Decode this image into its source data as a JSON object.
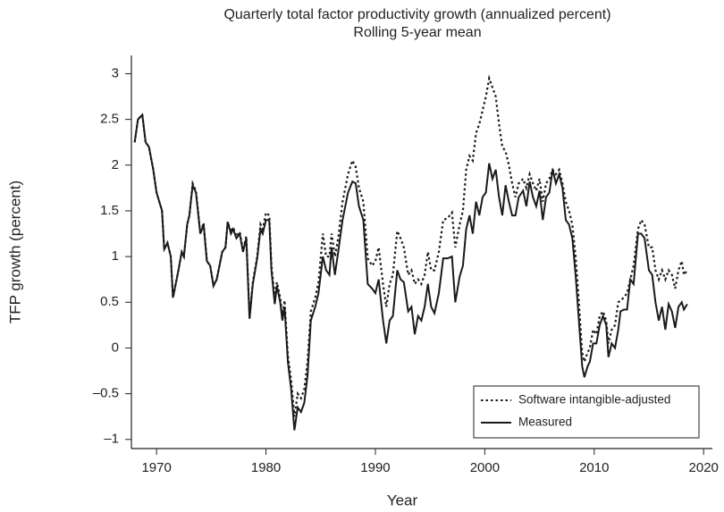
{
  "chart_data": {
    "type": "line",
    "title": "Quarterly total factor productivity growth (annualized percent)",
    "subtitle": "Rolling 5-year mean",
    "x_label": "Year",
    "y_label": "TFP growth (percent)",
    "xlim": [
      1967.7,
      2020.8
    ],
    "ylim": [
      -1.1,
      3.2
    ],
    "xticks": [
      1970,
      1980,
      1990,
      2000,
      2010,
      2020
    ],
    "yticks": [
      {
        "value": -1,
        "label": "–1"
      },
      {
        "value": -0.5,
        "label": "–0.5"
      },
      0,
      0.5,
      1,
      1.5,
      2,
      2.5,
      3
    ],
    "legend": "lower right",
    "x": [
      1968.0,
      1968.3,
      1968.7,
      1969.0,
      1969.3,
      1969.7,
      1970.0,
      1970.5,
      1970.7,
      1971.0,
      1971.3,
      1971.5,
      1972.0,
      1972.3,
      1972.5,
      1972.8,
      1973.0,
      1973.3,
      1973.6,
      1974.0,
      1974.3,
      1974.6,
      1974.9,
      1975.2,
      1975.5,
      1976.0,
      1976.3,
      1976.5,
      1976.8,
      1977.0,
      1977.3,
      1977.6,
      1977.9,
      1978.2,
      1978.5,
      1978.8,
      1979.2,
      1979.5,
      1979.7,
      1980.0,
      1980.3,
      1980.5,
      1980.8,
      1981.0,
      1981.3,
      1981.5,
      1981.7,
      1982.0,
      1982.3,
      1982.6,
      1982.9,
      1983.2,
      1983.5,
      1983.8,
      1984.1,
      1984.5,
      1984.8,
      1985.2,
      1985.5,
      1985.8,
      1986.0,
      1986.3,
      1986.6,
      1987.0,
      1987.5,
      1987.9,
      1988.2,
      1988.5,
      1988.9,
      1989.3,
      1989.7,
      1990.0,
      1990.3,
      1990.7,
      1991.0,
      1991.3,
      1991.6,
      1992.0,
      1992.3,
      1992.6,
      1993.0,
      1993.3,
      1993.6,
      1993.9,
      1994.2,
      1994.5,
      1994.8,
      1995.1,
      1995.4,
      1995.8,
      1996.2,
      1996.6,
      1997.0,
      1997.3,
      1997.7,
      1998.0,
      1998.3,
      1998.6,
      1998.9,
      1999.2,
      1999.5,
      1999.8,
      2000.1,
      2000.4,
      2000.7,
      2001.0,
      2001.3,
      2001.6,
      2001.9,
      2002.2,
      2002.5,
      2002.8,
      2003.1,
      2003.5,
      2003.8,
      2004.1,
      2004.4,
      2004.7,
      2005.0,
      2005.3,
      2005.6,
      2005.9,
      2006.2,
      2006.5,
      2006.8,
      2007.1,
      2007.4,
      2007.7,
      2008.0,
      2008.3,
      2008.6,
      2008.9,
      2009.1,
      2009.4,
      2009.6,
      2009.9,
      2010.2,
      2010.5,
      2010.8,
      2011.1,
      2011.3,
      2011.6,
      2011.9,
      2012.2,
      2012.4,
      2012.7,
      2013.0,
      2013.3,
      2013.6,
      2014.0,
      2014.3,
      2014.6,
      2015.0,
      2015.3,
      2015.6,
      2015.9,
      2016.2,
      2016.5,
      2016.8,
      2017.1,
      2017.4,
      2017.7,
      2018.0,
      2018.2,
      2018.5
    ],
    "series": [
      {
        "name": "Software intangible-adjusted",
        "color": "#1a1a1a",
        "line_style": "dotted",
        "values": [
          2.25,
          2.5,
          2.55,
          2.25,
          2.2,
          1.95,
          1.7,
          1.5,
          1.08,
          1.15,
          1.0,
          0.55,
          0.85,
          1.05,
          1.0,
          1.35,
          1.45,
          1.8,
          1.72,
          1.25,
          1.37,
          0.95,
          0.9,
          0.68,
          0.75,
          1.05,
          1.1,
          1.38,
          1.27,
          1.32,
          1.22,
          1.27,
          1.07,
          1.22,
          0.33,
          0.72,
          1.0,
          1.35,
          1.3,
          1.48,
          1.45,
          0.9,
          0.55,
          0.72,
          0.55,
          0.35,
          0.52,
          -0.08,
          -0.35,
          -0.75,
          -0.5,
          -0.55,
          -0.45,
          -0.15,
          0.4,
          0.55,
          0.72,
          1.25,
          1.0,
          1.0,
          1.25,
          1.0,
          1.2,
          1.6,
          1.9,
          2.05,
          1.98,
          1.75,
          1.6,
          0.98,
          0.9,
          0.95,
          1.1,
          0.7,
          0.45,
          0.7,
          0.8,
          1.28,
          1.2,
          1.1,
          0.8,
          0.85,
          0.7,
          0.75,
          0.7,
          0.8,
          1.05,
          0.85,
          0.85,
          1.05,
          1.4,
          1.42,
          1.48,
          1.1,
          1.35,
          1.5,
          1.95,
          2.1,
          2.05,
          2.35,
          2.45,
          2.6,
          2.75,
          2.95,
          2.85,
          2.75,
          2.45,
          2.2,
          2.15,
          2.0,
          1.8,
          1.65,
          1.8,
          1.85,
          1.75,
          1.9,
          1.8,
          1.72,
          1.85,
          1.6,
          1.8,
          1.85,
          1.95,
          1.9,
          1.95,
          1.8,
          1.6,
          1.5,
          1.35,
          1.0,
          0.5,
          -0.05,
          -0.15,
          -0.05,
          0.0,
          0.2,
          0.15,
          0.35,
          0.4,
          0.3,
          0.05,
          0.2,
          0.25,
          0.5,
          0.52,
          0.55,
          0.6,
          0.75,
          0.9,
          1.3,
          1.4,
          1.35,
          1.1,
          1.1,
          0.85,
          0.75,
          0.85,
          0.75,
          0.85,
          0.8,
          0.65,
          0.85,
          0.95,
          0.8,
          0.85
        ]
      },
      {
        "name": "Measured",
        "color": "#1a1a1a",
        "line_style": "solid",
        "values": [
          2.25,
          2.5,
          2.55,
          2.25,
          2.2,
          1.95,
          1.7,
          1.5,
          1.08,
          1.15,
          1.0,
          0.55,
          0.85,
          1.05,
          1.0,
          1.35,
          1.45,
          1.78,
          1.7,
          1.25,
          1.35,
          0.95,
          0.9,
          0.68,
          0.75,
          1.05,
          1.1,
          1.38,
          1.25,
          1.3,
          1.2,
          1.25,
          1.05,
          1.2,
          0.32,
          0.7,
          0.98,
          1.3,
          1.25,
          1.4,
          1.4,
          0.85,
          0.48,
          0.68,
          0.5,
          0.3,
          0.45,
          -0.15,
          -0.45,
          -0.9,
          -0.65,
          -0.7,
          -0.6,
          -0.3,
          0.3,
          0.45,
          0.6,
          1.0,
          0.85,
          0.8,
          1.1,
          0.8,
          1.05,
          1.4,
          1.7,
          1.82,
          1.8,
          1.55,
          1.4,
          0.7,
          0.65,
          0.6,
          0.75,
          0.3,
          0.05,
          0.3,
          0.35,
          0.85,
          0.75,
          0.72,
          0.4,
          0.45,
          0.15,
          0.35,
          0.3,
          0.45,
          0.7,
          0.45,
          0.38,
          0.6,
          0.98,
          0.98,
          1.0,
          0.5,
          0.78,
          0.9,
          1.3,
          1.45,
          1.25,
          1.6,
          1.45,
          1.65,
          1.7,
          2.02,
          1.85,
          1.95,
          1.65,
          1.45,
          1.78,
          1.6,
          1.45,
          1.45,
          1.65,
          1.72,
          1.55,
          1.82,
          1.65,
          1.55,
          1.72,
          1.4,
          1.65,
          1.7,
          1.95,
          1.8,
          1.9,
          1.75,
          1.4,
          1.35,
          1.2,
          0.8,
          0.3,
          -0.2,
          -0.32,
          -0.2,
          -0.15,
          0.05,
          0.05,
          0.25,
          0.35,
          0.25,
          -0.1,
          0.05,
          0.0,
          0.2,
          0.4,
          0.42,
          0.42,
          0.75,
          0.7,
          1.25,
          1.25,
          1.2,
          0.85,
          0.8,
          0.5,
          0.3,
          0.45,
          0.2,
          0.48,
          0.4,
          0.22,
          0.45,
          0.5,
          0.42,
          0.48
        ]
      }
    ]
  }
}
